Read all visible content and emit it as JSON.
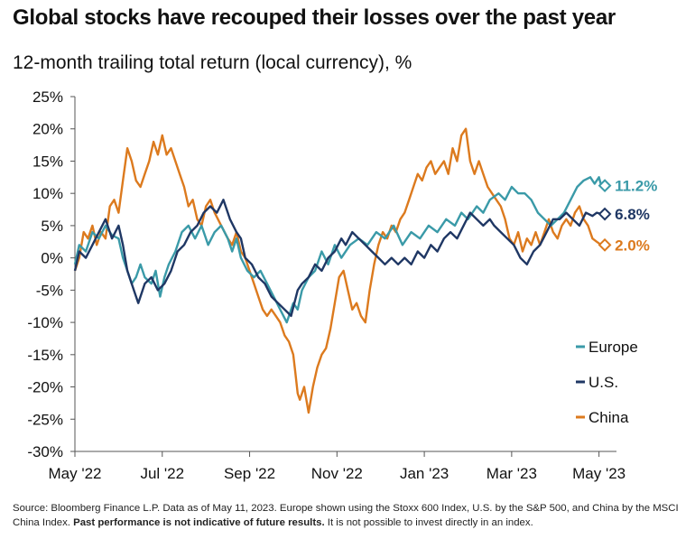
{
  "title": "Global stocks have recouped their losses over the past year",
  "subtitle": "12-month trailing total return (local currency), %",
  "footnote": {
    "part1": "Source: Bloomberg Finance L.P. Data as of May 11, 2023. Europe shown using the Stoxx 600 Index, U.S. by the S&P 500, and China by the MSCI China Index. ",
    "bold": "Past performance is not indicative of future results.",
    "part2": " It is not possible to invest directly in an index."
  },
  "chart_data": {
    "type": "line",
    "ylim": [
      -30,
      25
    ],
    "yticks": [
      25,
      20,
      15,
      10,
      5,
      0,
      -5,
      -10,
      -15,
      -20,
      -25,
      -30
    ],
    "ytick_labels": [
      "25%",
      "20%",
      "15%",
      "10%",
      "5%",
      "0%",
      "-5%",
      "-10%",
      "-15%",
      "-20%",
      "-25%",
      "-30%"
    ],
    "xlim": [
      0,
      12.4
    ],
    "xticks": [
      0,
      2,
      4,
      6,
      8,
      10,
      12
    ],
    "xtick_labels": [
      "May '22",
      "Jul '22",
      "Sep '22",
      "Nov '22",
      "Jan '23",
      "Mar '23",
      "May '23"
    ],
    "legend_position": "right",
    "series": [
      {
        "name": "Europe",
        "color": "#3a9aa8",
        "end_label": "11.2%",
        "end_value": 11.2,
        "points": [
          [
            0,
            -1
          ],
          [
            0.1,
            2
          ],
          [
            0.25,
            1
          ],
          [
            0.4,
            4
          ],
          [
            0.55,
            3
          ],
          [
            0.7,
            5
          ],
          [
            0.85,
            3.5
          ],
          [
            1.0,
            3
          ],
          [
            1.1,
            0
          ],
          [
            1.2,
            -2
          ],
          [
            1.3,
            -4
          ],
          [
            1.4,
            -3
          ],
          [
            1.5,
            -1
          ],
          [
            1.6,
            -3
          ],
          [
            1.75,
            -4
          ],
          [
            1.85,
            -2
          ],
          [
            1.95,
            -6
          ],
          [
            2.05,
            -3
          ],
          [
            2.15,
            -1
          ],
          [
            2.3,
            1
          ],
          [
            2.45,
            4
          ],
          [
            2.6,
            5
          ],
          [
            2.75,
            3
          ],
          [
            2.9,
            5
          ],
          [
            3.05,
            2
          ],
          [
            3.2,
            4
          ],
          [
            3.35,
            5
          ],
          [
            3.5,
            3
          ],
          [
            3.6,
            1
          ],
          [
            3.7,
            3
          ],
          [
            3.8,
            0
          ],
          [
            3.95,
            -2
          ],
          [
            4.1,
            -3
          ],
          [
            4.25,
            -2
          ],
          [
            4.4,
            -4
          ],
          [
            4.55,
            -6
          ],
          [
            4.7,
            -8
          ],
          [
            4.85,
            -10
          ],
          [
            5.0,
            -7
          ],
          [
            5.1,
            -8
          ],
          [
            5.2,
            -5
          ],
          [
            5.35,
            -3
          ],
          [
            5.5,
            -2
          ],
          [
            5.65,
            1
          ],
          [
            5.8,
            -1
          ],
          [
            5.95,
            2
          ],
          [
            6.1,
            0
          ],
          [
            6.3,
            2
          ],
          [
            6.5,
            3
          ],
          [
            6.7,
            2
          ],
          [
            6.9,
            4
          ],
          [
            7.1,
            3
          ],
          [
            7.3,
            5
          ],
          [
            7.5,
            2
          ],
          [
            7.7,
            4
          ],
          [
            7.9,
            3
          ],
          [
            8.1,
            5
          ],
          [
            8.3,
            4
          ],
          [
            8.5,
            6
          ],
          [
            8.7,
            5
          ],
          [
            8.85,
            7
          ],
          [
            9.0,
            6
          ],
          [
            9.2,
            8
          ],
          [
            9.35,
            7
          ],
          [
            9.5,
            9
          ],
          [
            9.7,
            10
          ],
          [
            9.85,
            9
          ],
          [
            10.0,
            11
          ],
          [
            10.15,
            10
          ],
          [
            10.3,
            10
          ],
          [
            10.45,
            9
          ],
          [
            10.6,
            7
          ],
          [
            10.75,
            6
          ],
          [
            10.9,
            5
          ],
          [
            11.05,
            6
          ],
          [
            11.2,
            7
          ],
          [
            11.35,
            9
          ],
          [
            11.5,
            11
          ],
          [
            11.65,
            12
          ],
          [
            11.8,
            12.5
          ],
          [
            11.9,
            11.5
          ],
          [
            12.0,
            12.5
          ],
          [
            12.05,
            11.2
          ]
        ]
      },
      {
        "name": "U.S.",
        "color": "#1f3764",
        "end_label": "6.8%",
        "end_value": 6.8,
        "points": [
          [
            0,
            -2
          ],
          [
            0.1,
            1
          ],
          [
            0.25,
            0
          ],
          [
            0.4,
            2
          ],
          [
            0.55,
            4
          ],
          [
            0.7,
            6
          ],
          [
            0.85,
            3
          ],
          [
            1.0,
            5
          ],
          [
            1.1,
            2
          ],
          [
            1.2,
            -2
          ],
          [
            1.35,
            -5
          ],
          [
            1.45,
            -7
          ],
          [
            1.6,
            -4
          ],
          [
            1.75,
            -3
          ],
          [
            1.9,
            -5
          ],
          [
            2.05,
            -4
          ],
          [
            2.2,
            -2
          ],
          [
            2.35,
            1
          ],
          [
            2.5,
            2
          ],
          [
            2.65,
            4
          ],
          [
            2.8,
            5
          ],
          [
            2.95,
            7
          ],
          [
            3.1,
            8
          ],
          [
            3.25,
            7
          ],
          [
            3.4,
            9
          ],
          [
            3.55,
            6
          ],
          [
            3.7,
            4
          ],
          [
            3.8,
            3
          ],
          [
            3.9,
            0
          ],
          [
            4.05,
            -1
          ],
          [
            4.2,
            -3
          ],
          [
            4.35,
            -4
          ],
          [
            4.5,
            -6
          ],
          [
            4.65,
            -7
          ],
          [
            4.8,
            -8
          ],
          [
            4.95,
            -9
          ],
          [
            5.1,
            -5
          ],
          [
            5.2,
            -4
          ],
          [
            5.35,
            -3
          ],
          [
            5.5,
            -1
          ],
          [
            5.65,
            -2
          ],
          [
            5.8,
            0
          ],
          [
            5.95,
            1
          ],
          [
            6.1,
            3
          ],
          [
            6.2,
            2
          ],
          [
            6.35,
            4
          ],
          [
            6.5,
            3
          ],
          [
            6.65,
            2
          ],
          [
            6.8,
            1
          ],
          [
            6.95,
            0
          ],
          [
            7.1,
            -1
          ],
          [
            7.25,
            0
          ],
          [
            7.4,
            -1
          ],
          [
            7.55,
            0
          ],
          [
            7.7,
            -1
          ],
          [
            7.85,
            1
          ],
          [
            8.0,
            0
          ],
          [
            8.15,
            2
          ],
          [
            8.3,
            1
          ],
          [
            8.45,
            3
          ],
          [
            8.6,
            4
          ],
          [
            8.75,
            3
          ],
          [
            8.9,
            5
          ],
          [
            9.05,
            7
          ],
          [
            9.2,
            6
          ],
          [
            9.35,
            5
          ],
          [
            9.5,
            6
          ],
          [
            9.6,
            5
          ],
          [
            9.75,
            4
          ],
          [
            9.9,
            3
          ],
          [
            10.05,
            2
          ],
          [
            10.2,
            0
          ],
          [
            10.35,
            -1
          ],
          [
            10.5,
            1
          ],
          [
            10.65,
            2
          ],
          [
            10.8,
            4
          ],
          [
            10.95,
            6
          ],
          [
            11.1,
            6
          ],
          [
            11.25,
            7
          ],
          [
            11.4,
            6
          ],
          [
            11.55,
            5
          ],
          [
            11.7,
            7
          ],
          [
            11.85,
            6.5
          ],
          [
            11.95,
            7
          ],
          [
            12.05,
            6.8
          ]
        ]
      },
      {
        "name": "China",
        "color": "#dc7a1e",
        "end_label": "2.0%",
        "end_value": 2.0,
        "points": [
          [
            0,
            -2
          ],
          [
            0.1,
            0
          ],
          [
            0.2,
            4
          ],
          [
            0.3,
            3
          ],
          [
            0.4,
            5
          ],
          [
            0.5,
            2
          ],
          [
            0.6,
            4
          ],
          [
            0.7,
            3
          ],
          [
            0.8,
            8
          ],
          [
            0.9,
            9
          ],
          [
            1.0,
            7
          ],
          [
            1.1,
            12
          ],
          [
            1.2,
            17
          ],
          [
            1.3,
            15
          ],
          [
            1.4,
            12
          ],
          [
            1.5,
            11
          ],
          [
            1.6,
            13
          ],
          [
            1.7,
            15
          ],
          [
            1.8,
            18
          ],
          [
            1.9,
            16
          ],
          [
            2.0,
            19
          ],
          [
            2.1,
            16
          ],
          [
            2.2,
            17
          ],
          [
            2.3,
            15
          ],
          [
            2.4,
            13
          ],
          [
            2.5,
            11
          ],
          [
            2.6,
            8
          ],
          [
            2.7,
            9
          ],
          [
            2.8,
            6
          ],
          [
            2.9,
            5
          ],
          [
            3.0,
            8
          ],
          [
            3.1,
            9
          ],
          [
            3.2,
            7
          ],
          [
            3.35,
            5
          ],
          [
            3.5,
            3
          ],
          [
            3.6,
            2
          ],
          [
            3.7,
            4
          ],
          [
            3.8,
            1
          ],
          [
            3.9,
            0
          ],
          [
            4.0,
            -2
          ],
          [
            4.1,
            -4
          ],
          [
            4.2,
            -6
          ],
          [
            4.3,
            -8
          ],
          [
            4.4,
            -9
          ],
          [
            4.5,
            -8
          ],
          [
            4.6,
            -9
          ],
          [
            4.7,
            -10
          ],
          [
            4.8,
            -12
          ],
          [
            4.9,
            -13
          ],
          [
            5.0,
            -15
          ],
          [
            5.05,
            -18
          ],
          [
            5.1,
            -21
          ],
          [
            5.15,
            -22
          ],
          [
            5.25,
            -20
          ],
          [
            5.35,
            -24
          ],
          [
            5.45,
            -20
          ],
          [
            5.55,
            -17
          ],
          [
            5.65,
            -15
          ],
          [
            5.75,
            -14
          ],
          [
            5.85,
            -11
          ],
          [
            5.95,
            -7
          ],
          [
            6.05,
            -3
          ],
          [
            6.15,
            -2
          ],
          [
            6.25,
            -5
          ],
          [
            6.35,
            -8
          ],
          [
            6.45,
            -7
          ],
          [
            6.55,
            -9
          ],
          [
            6.65,
            -10
          ],
          [
            6.75,
            -5
          ],
          [
            6.85,
            -1
          ],
          [
            6.95,
            2
          ],
          [
            7.05,
            4
          ],
          [
            7.15,
            3
          ],
          [
            7.25,
            5
          ],
          [
            7.35,
            4
          ],
          [
            7.45,
            6
          ],
          [
            7.55,
            7
          ],
          [
            7.65,
            9
          ],
          [
            7.75,
            11
          ],
          [
            7.85,
            13
          ],
          [
            7.95,
            12
          ],
          [
            8.05,
            14
          ],
          [
            8.15,
            15
          ],
          [
            8.25,
            13
          ],
          [
            8.35,
            14
          ],
          [
            8.45,
            15
          ],
          [
            8.55,
            13
          ],
          [
            8.65,
            17
          ],
          [
            8.75,
            15
          ],
          [
            8.85,
            19
          ],
          [
            8.95,
            20
          ],
          [
            9.05,
            15
          ],
          [
            9.15,
            13
          ],
          [
            9.25,
            15
          ],
          [
            9.35,
            13
          ],
          [
            9.45,
            11
          ],
          [
            9.55,
            10
          ],
          [
            9.65,
            9
          ],
          [
            9.75,
            8
          ],
          [
            9.85,
            6
          ],
          [
            9.95,
            3
          ],
          [
            10.05,
            2
          ],
          [
            10.15,
            4
          ],
          [
            10.25,
            1
          ],
          [
            10.35,
            3
          ],
          [
            10.45,
            2
          ],
          [
            10.55,
            4
          ],
          [
            10.65,
            2
          ],
          [
            10.75,
            4
          ],
          [
            10.85,
            6
          ],
          [
            10.95,
            4
          ],
          [
            11.05,
            3
          ],
          [
            11.15,
            5
          ],
          [
            11.25,
            6
          ],
          [
            11.35,
            5
          ],
          [
            11.45,
            7
          ],
          [
            11.55,
            8
          ],
          [
            11.65,
            6
          ],
          [
            11.75,
            5
          ],
          [
            11.85,
            3
          ],
          [
            11.95,
            2.5
          ],
          [
            12.05,
            2.0
          ]
        ]
      }
    ]
  }
}
